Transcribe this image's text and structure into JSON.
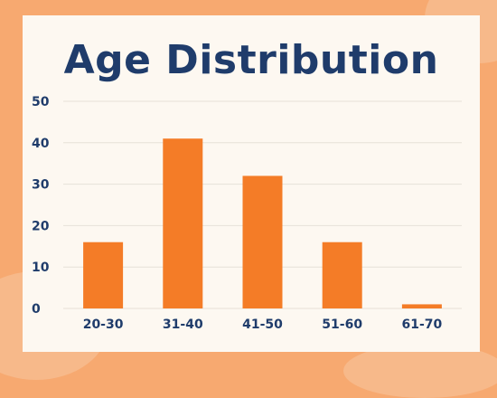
{
  "chart_data": {
    "type": "bar",
    "title": "Age Distribution",
    "categories": [
      "20-30",
      "31-40",
      "41-50",
      "51-60",
      "61-70"
    ],
    "values": [
      16,
      41,
      32,
      16,
      1
    ],
    "ylim": [
      0,
      50
    ],
    "yticks": [
      0,
      10,
      20,
      30,
      40,
      50
    ],
    "grid": true,
    "xlabel": "",
    "ylabel": "",
    "colors": {
      "bar": "#f47c27",
      "text": "#1f3c6b",
      "grid": "#e6e1d8",
      "background": "#fdf8f1"
    }
  }
}
